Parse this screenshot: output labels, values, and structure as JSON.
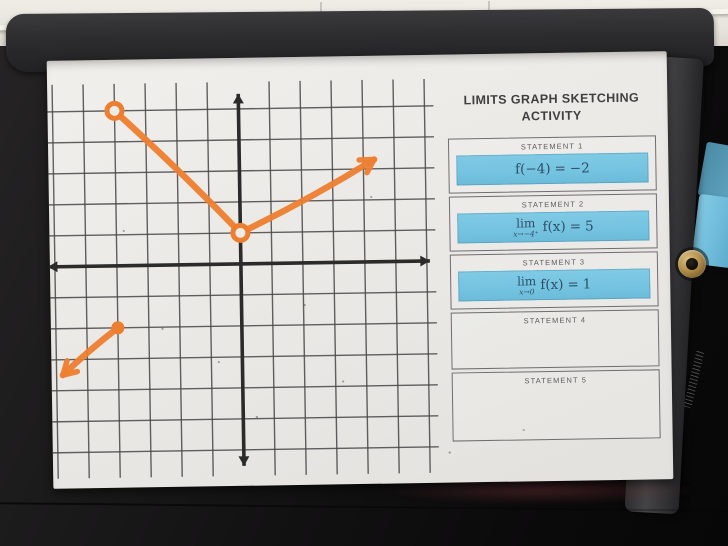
{
  "scene": {
    "setting": "photo of a printed limits worksheet lying on a dark clipboard tray against a white brick wall",
    "colors": {
      "marker_orange": "#ee7e2f",
      "highlight_blue": "#74c3e0",
      "math_text": "#2e4d68",
      "paper": "#edebe7",
      "clipboard_dark": "#1a1a1c",
      "wall": "#e9e6df",
      "grommet_brass": "#b5924f",
      "blue_paper": "#6cb9d8"
    }
  },
  "worksheet": {
    "title_line1": "LIMITS GRAPH SKETCHING",
    "title_line2": "ACTIVITY",
    "statements": [
      {
        "label": "STATEMENT 1",
        "highlighted": true,
        "math": {
          "func": "f(−4)",
          "equals": "=",
          "value": "−2"
        }
      },
      {
        "label": "STATEMENT 2",
        "highlighted": true,
        "math": {
          "lim": "lim",
          "sub": "x→−4⁺",
          "func": "f(x)",
          "equals": "=",
          "value": "5"
        }
      },
      {
        "label": "STATEMENT 3",
        "highlighted": true,
        "math": {
          "lim": "lim",
          "sub": "x→0",
          "func": "f(x)",
          "equals": "=",
          "value": "1"
        }
      },
      {
        "label": "STATEMENT 4",
        "highlighted": false
      },
      {
        "label": "STATEMENT 5",
        "highlighted": false
      }
    ]
  },
  "chart_data": {
    "type": "line",
    "title": "Hand-drawn piecewise function in orange marker on square grid",
    "xlabel": "",
    "ylabel": "",
    "x_range": [
      -6,
      6
    ],
    "y_range": [
      -6,
      6
    ],
    "grid": true,
    "axes_arrows": true,
    "series": [
      {
        "name": "left-ray",
        "from": [
          -4,
          -2
        ],
        "to": [
          -5.8,
          -3.5
        ],
        "start_marker": "closed-dot",
        "end_marker": "arrow",
        "bow": 2
      },
      {
        "name": "middle-segment",
        "from": [
          -4,
          5
        ],
        "to": [
          0,
          1
        ],
        "start_marker": "open-circle",
        "end_marker": "open-circle",
        "bow": -3
      },
      {
        "name": "right-ray",
        "from": [
          0,
          1
        ],
        "to": [
          4.35,
          3.3
        ],
        "start_marker": "none",
        "end_marker": "arrow",
        "bow": 4
      }
    ],
    "key_points": {
      "closed_point": [
        -4,
        -2
      ],
      "open_points": [
        [
          -4,
          5
        ],
        [
          0,
          1
        ]
      ]
    }
  }
}
